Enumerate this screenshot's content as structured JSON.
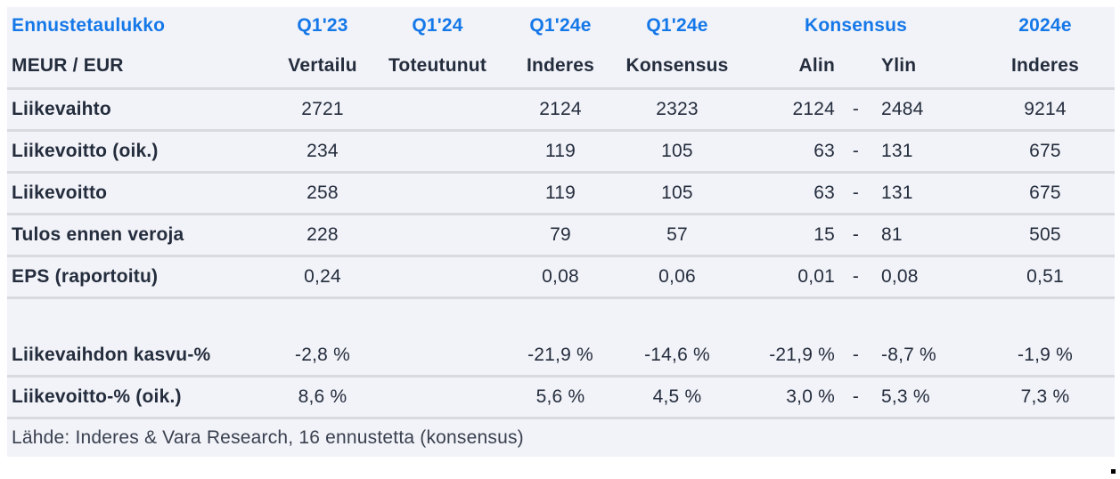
{
  "colors": {
    "accent_blue": "#1578e8",
    "row_background": "#f2f3f8",
    "separator_line": "#d9dadf",
    "text_dark": "#242d3d"
  },
  "header": {
    "title": "Ennustetaulukko",
    "unit_row_label": "MEUR / EUR",
    "period_row": {
      "q1_23": "Q1'23",
      "q1_24": "Q1'24",
      "q1_24e_inderes": "Q1'24e",
      "q1_24e_konsensus": "Q1'24e",
      "konsensus_group": "Konsensus",
      "y2024e": "2024e"
    },
    "subheader_row": {
      "vertailu": "Vertailu",
      "toteutunut": "Toteutunut",
      "inderes": "Inderes",
      "konsensus": "Konsensus",
      "alin": "Alin",
      "ylin": "Ylin",
      "inderes_2024": "Inderes"
    }
  },
  "rows": [
    {
      "kind": "data",
      "label": "Liikevaihto",
      "vertailu": "2721",
      "toteutunut": "",
      "inderes": "2124",
      "konsensus": "2323",
      "alin": "2124",
      "range_dash": "-",
      "ylin": "2484",
      "inderes_2024": "9214"
    },
    {
      "kind": "data",
      "label": "Liikevoitto (oik.)",
      "vertailu": "234",
      "toteutunut": "",
      "inderes": "119",
      "konsensus": "105",
      "alin": "63",
      "range_dash": "-",
      "ylin": "131",
      "inderes_2024": "675"
    },
    {
      "kind": "data",
      "label": "Liikevoitto",
      "vertailu": "258",
      "toteutunut": "",
      "inderes": "119",
      "konsensus": "105",
      "alin": "63",
      "range_dash": "-",
      "ylin": "131",
      "inderes_2024": "675"
    },
    {
      "kind": "data",
      "label": "Tulos ennen veroja",
      "vertailu": "228",
      "toteutunut": "",
      "inderes": "79",
      "konsensus": "57",
      "alin": "15",
      "range_dash": "-",
      "ylin": "81",
      "inderes_2024": "505"
    },
    {
      "kind": "data",
      "label": "EPS (raportoitu)",
      "vertailu": "0,24",
      "toteutunut": "",
      "inderes": "0,08",
      "konsensus": "0,06",
      "alin": "0,01",
      "range_dash": "-",
      "ylin": "0,08",
      "inderes_2024": "0,51"
    },
    {
      "kind": "spacer",
      "label": "",
      "vertailu": "",
      "toteutunut": "",
      "inderes": "",
      "konsensus": "",
      "alin": "",
      "range_dash": "",
      "ylin": "",
      "inderes_2024": ""
    },
    {
      "kind": "data",
      "label": "Liikevaihdon kasvu-%",
      "vertailu": "-2,8 %",
      "toteutunut": "",
      "inderes": "-21,9 %",
      "konsensus": "-14,6 %",
      "alin": "-21,9 %",
      "range_dash": "-",
      "ylin": "-8,7 %",
      "inderes_2024": "-1,9 %"
    },
    {
      "kind": "data",
      "label": "Liikevoitto-% (oik.)",
      "vertailu": "8,6 %",
      "toteutunut": "",
      "inderes": "5,6 %",
      "konsensus": "4,5 %",
      "alin": "3,0 %",
      "range_dash": "-",
      "ylin": "5,3 %",
      "inderes_2024": "7,3 %"
    }
  ],
  "footer": {
    "source_note": "Lähde: Inderes & Vara Research, 16 ennustetta  (konsensus)"
  }
}
